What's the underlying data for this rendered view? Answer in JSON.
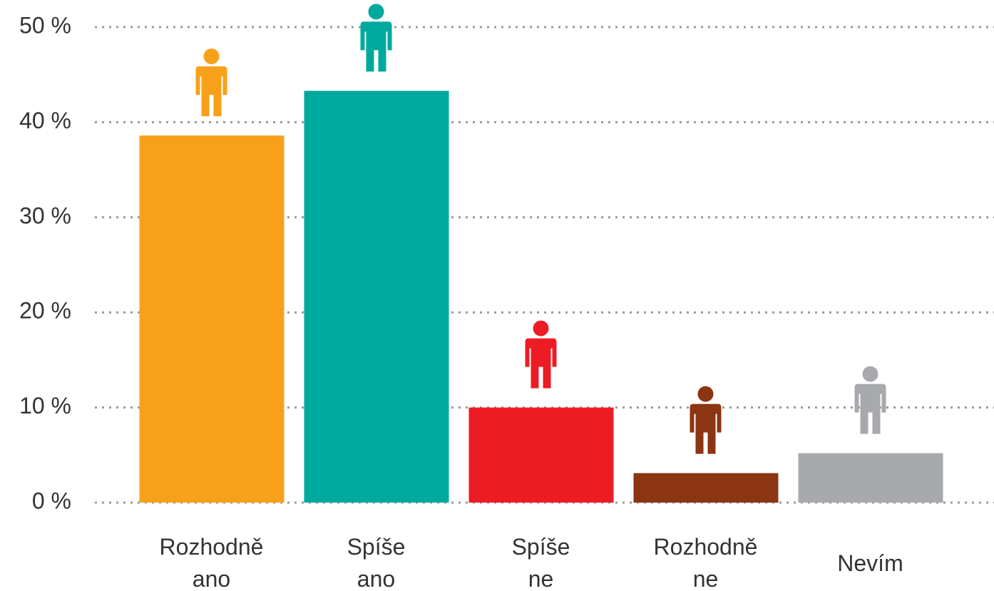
{
  "chart_data": {
    "type": "bar",
    "categories": [
      "Rozhodně ano",
      "Spíše ano",
      "Spíše ne",
      "Rozhodně ne",
      "Nevím"
    ],
    "values": [
      38.6,
      43.3,
      10,
      3.1,
      5.2
    ],
    "colors": [
      "#f7a11a",
      "#00a99d",
      "#ed1c24",
      "#8b3513",
      "#a7a9ac"
    ],
    "ylim": [
      0,
      50
    ],
    "yticks": [
      {
        "value": 0,
        "label": "0 %"
      },
      {
        "value": 10,
        "label": "10 %"
      },
      {
        "value": 20,
        "label": "20 %"
      },
      {
        "value": 30,
        "label": "30 %"
      },
      {
        "value": 40,
        "label": "40 %"
      },
      {
        "value": 50,
        "label": "50 %"
      }
    ],
    "grid": true
  }
}
